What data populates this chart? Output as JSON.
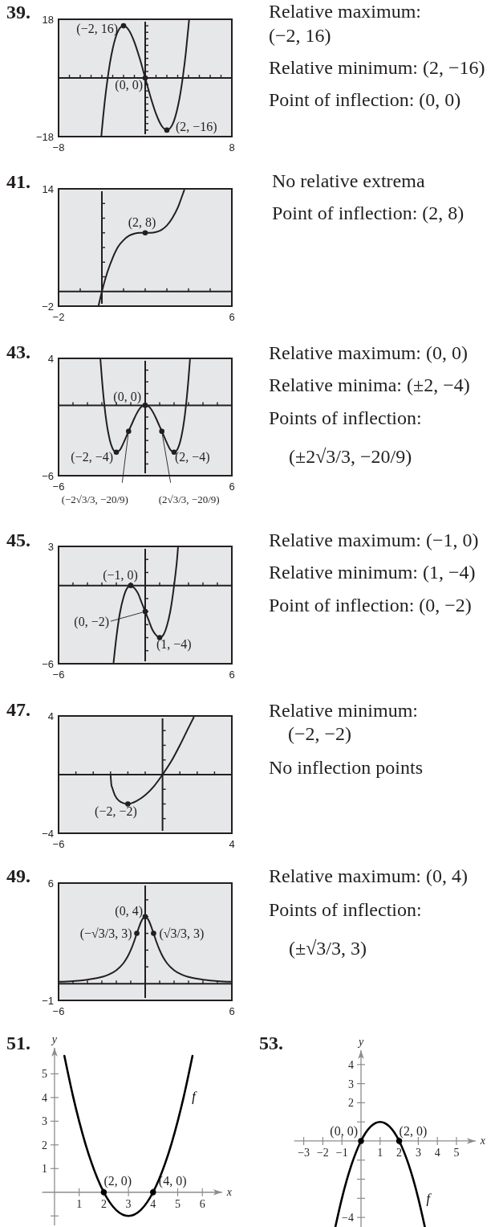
{
  "chart_data": [
    {
      "type": "line",
      "title": "39.",
      "x": [
        -4.05,
        -3.75,
        -3.5,
        -3.25,
        -3,
        -2.5,
        -2,
        -1.5,
        -1,
        -0.5,
        0,
        0.5,
        1,
        1.5,
        2,
        2.5,
        3,
        3.25,
        3.5,
        3.75,
        4,
        4.05
      ],
      "series": [
        {
          "color": "#231f20",
          "values": [
            -17.8,
            -7.7,
            -0.9,
            4.7,
            9,
            14.4,
            16,
            14.6,
            11,
            5.9,
            0,
            -5.9,
            -11,
            -14.6,
            -16,
            -14.4,
            -9,
            -4.7,
            0.9,
            7.7,
            16,
            17.8
          ]
        },
        {
          "type": "scatter",
          "x": [
            -2,
            0,
            2
          ],
          "color": "#231f20",
          "marker": "circle",
          "values": [
            16,
            0,
            -16
          ]
        }
      ],
      "xlim": [
        -8,
        8
      ],
      "ylim": [
        -18,
        18
      ],
      "xticks": [
        {
          "value": -8,
          "label": "−8"
        },
        {
          "value": -7,
          "label": null
        },
        {
          "value": -6,
          "label": null
        },
        {
          "value": -5,
          "label": null
        },
        {
          "value": -4,
          "label": null
        },
        {
          "value": -3,
          "label": null
        },
        {
          "value": -2,
          "label": null
        },
        {
          "value": -1,
          "label": null
        },
        {
          "value": 1,
          "label": null
        },
        {
          "value": 2,
          "label": null
        },
        {
          "value": 3,
          "label": null
        },
        {
          "value": 4,
          "label": null
        },
        {
          "value": 5,
          "label": null
        },
        {
          "value": 6,
          "label": null
        },
        {
          "value": 7,
          "label": null
        },
        8
      ],
      "yticks": [
        {
          "value": -18,
          "label": "−18"
        },
        {
          "value": -16,
          "label": null
        },
        {
          "value": -14,
          "label": null
        },
        {
          "value": -12,
          "label": null
        },
        {
          "value": -10,
          "label": null
        },
        {
          "value": -8,
          "label": null
        },
        {
          "value": -6,
          "label": null
        },
        {
          "value": -4,
          "label": null
        },
        {
          "value": -2,
          "label": null
        },
        {
          "value": 2,
          "label": null
        },
        {
          "value": 4,
          "label": null
        },
        {
          "value": 6,
          "label": null
        },
        {
          "value": 8,
          "label": null
        },
        {
          "value": 10,
          "label": null
        },
        {
          "value": 12,
          "label": null
        },
        {
          "value": 14,
          "label": null
        },
        {
          "value": 16,
          "label": null
        },
        18
      ],
      "annotations": [
        {
          "text": "(−2, 16)",
          "x": -2,
          "y": 16
        },
        {
          "text": "(0, 0)",
          "x": 0,
          "y": 0
        },
        {
          "text": "(2, −16)",
          "x": 2,
          "y": -16
        },
        "Relative maximum:",
        "(−2, 16)",
        "Relative minimum: (2, −16)",
        "Point of inflection: (0, 0)"
      ]
    },
    {
      "type": "line",
      "title": "41.",
      "x": [
        -0.15,
        0,
        0.25,
        0.5,
        0.75,
        1,
        1.25,
        1.5,
        1.75,
        2,
        2.25,
        2.5,
        2.75,
        3,
        3.25,
        3.5,
        3.75,
        3.8
      ],
      "series": [
        {
          "color": "#231f20",
          "values": [
            -1.9,
            0,
            2.6,
            4.6,
            6.1,
            7,
            7.6,
            7.9,
            8,
            8,
            8,
            8.1,
            8.4,
            9,
            10,
            11.4,
            13.4,
            13.8
          ]
        },
        {
          "type": "scatter",
          "x": [
            2
          ],
          "color": "#231f20",
          "marker": "circle",
          "values": [
            8
          ]
        }
      ],
      "xlim": [
        -2,
        6
      ],
      "ylim": [
        -2,
        14
      ],
      "xticks": [
        {
          "value": -2,
          "label": "−2"
        },
        {
          "value": -1,
          "label": null
        },
        {
          "value": 1,
          "label": null
        },
        {
          "value": 2,
          "label": null
        },
        {
          "value": 3,
          "label": null
        },
        {
          "value": 4,
          "label": null
        },
        {
          "value": 5,
          "label": null
        },
        6
      ],
      "yticks": [
        {
          "value": -2,
          "label": "−2"
        },
        {
          "value": 2,
          "label": null
        },
        {
          "value": 4,
          "label": null
        },
        {
          "value": 6,
          "label": null
        },
        {
          "value": 8,
          "label": null
        },
        {
          "value": 10,
          "label": null
        },
        {
          "value": 12,
          "label": null
        },
        14
      ],
      "annotations": [
        {
          "text": "(2, 8)",
          "x": 2,
          "y": 8
        },
        "No relative extrema",
        "Point of inflection: (2, 8)"
      ]
    },
    {
      "type": "line",
      "title": "43.",
      "x": [
        -3.1,
        -3,
        -2.75,
        -2.5,
        -2.25,
        -2,
        -1.75,
        -1.5,
        -1.15,
        -1,
        -0.75,
        -0.5,
        -0.25,
        0,
        0.25,
        0.5,
        0.75,
        1,
        1.15,
        1.5,
        1.75,
        2,
        2.25,
        2.5,
        2.75,
        3,
        3.1
      ],
      "series": [
        {
          "color": "#231f20",
          "values": [
            3.9,
            2.3,
            -0.8,
            -2.7,
            -3.7,
            -4,
            -3.8,
            -3.2,
            -2.2,
            -1.8,
            -1.1,
            -0.5,
            -0.1,
            0,
            -0.1,
            -0.5,
            -1.1,
            -1.8,
            -2.2,
            -3.2,
            -3.8,
            -4,
            -3.7,
            -2.7,
            -0.8,
            2.3,
            3.9
          ]
        },
        {
          "type": "scatter",
          "x": [
            0,
            -2,
            2,
            -1.15,
            1.15
          ],
          "color": "#231f20",
          "marker": "circle",
          "values": [
            0,
            -4,
            -4,
            -2.22,
            -2.22
          ]
        }
      ],
      "xlim": [
        -6,
        6
      ],
      "ylim": [
        -6,
        4
      ],
      "xticks": [
        {
          "value": -6,
          "label": "−6"
        },
        {
          "value": -5,
          "label": null
        },
        {
          "value": -4,
          "label": null
        },
        {
          "value": -3,
          "label": null
        },
        {
          "value": -2,
          "label": null
        },
        {
          "value": -1,
          "label": null
        },
        {
          "value": 1,
          "label": null
        },
        {
          "value": 2,
          "label": null
        },
        {
          "value": 3,
          "label": null
        },
        {
          "value": 4,
          "label": null
        },
        {
          "value": 5,
          "label": null
        },
        6
      ],
      "yticks": [
        {
          "value": -6,
          "label": "−6"
        },
        {
          "value": -5,
          "label": null
        },
        {
          "value": -4,
          "label": null
        },
        {
          "value": -3,
          "label": null
        },
        {
          "value": -2,
          "label": null
        },
        {
          "value": -1,
          "label": null
        },
        {
          "value": 1,
          "label": null
        },
        {
          "value": 2,
          "label": null
        },
        {
          "value": 3,
          "label": null
        },
        4
      ],
      "annotations": [
        {
          "text": "(0, 0)",
          "x": 0,
          "y": 0
        },
        {
          "text": "(−2, −4)",
          "x": -2,
          "y": -4
        },
        {
          "text": "(2, −4)",
          "x": 2,
          "y": -4
        },
        {
          "text": "(−2√3/3, −20/9)",
          "x": -1.15,
          "y": -2.22
        },
        {
          "text": "(2√3/3, −20/9)",
          "x": 1.15,
          "y": -2.22
        },
        "Relative maximum: (0, 0)",
        "Relative minima: (±2, −4)",
        "Points of inflection:",
        "(±2√3/3, −20/9)"
      ]
    },
    {
      "type": "line",
      "title": "45.",
      "x": [
        -2.19,
        -2,
        -1.75,
        -1.5,
        -1.25,
        -1,
        -0.75,
        -0.5,
        -0.25,
        0,
        0.25,
        0.5,
        0.75,
        1,
        1.25,
        1.5,
        1.75,
        2,
        2.25,
        2.27
      ],
      "series": [
        {
          "color": "#231f20",
          "values": [
            -5.9,
            -4,
            -2.1,
            -0.9,
            -0.2,
            0,
            -0.2,
            -0.6,
            -1.3,
            -2,
            -2.7,
            -3.4,
            -3.8,
            -4,
            -3.8,
            -3.1,
            -1.9,
            0,
            2.6,
            2.9
          ]
        },
        {
          "type": "scatter",
          "x": [
            -1,
            0,
            1
          ],
          "color": "#231f20",
          "marker": "circle",
          "values": [
            0,
            -2,
            -4
          ]
        }
      ],
      "xlim": [
        -6,
        6
      ],
      "ylim": [
        -6,
        3
      ],
      "xticks": [
        {
          "value": -6,
          "label": "−6"
        },
        {
          "value": -5,
          "label": null
        },
        {
          "value": -4,
          "label": null
        },
        {
          "value": -3,
          "label": null
        },
        {
          "value": -2,
          "label": null
        },
        {
          "value": -1,
          "label": null
        },
        {
          "value": 1,
          "label": null
        },
        {
          "value": 2,
          "label": null
        },
        {
          "value": 3,
          "label": null
        },
        {
          "value": 4,
          "label": null
        },
        {
          "value": 5,
          "label": null
        },
        6
      ],
      "yticks": [
        {
          "value": -6,
          "label": "−6"
        },
        {
          "value": -5,
          "label": null
        },
        {
          "value": -4,
          "label": null
        },
        {
          "value": -3,
          "label": null
        },
        {
          "value": -2,
          "label": null
        },
        {
          "value": -1,
          "label": null
        },
        {
          "value": 1,
          "label": null
        },
        {
          "value": 2,
          "label": null
        },
        3
      ],
      "annotations": [
        {
          "text": "(−1, 0)",
          "x": -1,
          "y": 0
        },
        {
          "text": "(0, −2)",
          "x": 0,
          "y": -2
        },
        {
          "text": "(1, −4)",
          "x": 1,
          "y": -4
        },
        "Relative maximum: (−1, 0)",
        "Relative minimum: (1, −4)",
        "Point of inflection: (0, −2)"
      ]
    },
    {
      "type": "line",
      "title": "47.",
      "x": [
        -3,
        -2.95,
        -2.9,
        -2.75,
        -2.5,
        -2.25,
        -2,
        -1.5,
        -1,
        -0.5,
        0,
        0.5,
        1,
        1.5,
        1.8
      ],
      "series": [
        {
          "color": "#231f20",
          "values": [
            0,
            -0.7,
            -0.9,
            -1.4,
            -1.8,
            -1.95,
            -2,
            -1.8,
            -1.4,
            -0.8,
            0,
            0.9,
            2,
            3.2,
            3.9
          ]
        },
        {
          "type": "scatter",
          "x": [
            -2
          ],
          "color": "#231f20",
          "marker": "circle",
          "values": [
            -2
          ]
        }
      ],
      "xlim": [
        -6,
        4
      ],
      "ylim": [
        -4,
        4
      ],
      "xticks": [
        {
          "value": -6,
          "label": "−6"
        },
        {
          "value": -5,
          "label": null
        },
        {
          "value": -4,
          "label": null
        },
        {
          "value": -3,
          "label": null
        },
        {
          "value": -2,
          "label": null
        },
        {
          "value": -1,
          "label": null
        },
        {
          "value": 1,
          "label": null
        },
        {
          "value": 2,
          "label": null
        },
        {
          "value": 3,
          "label": null
        },
        4
      ],
      "yticks": [
        {
          "value": -4,
          "label": "−4"
        },
        {
          "value": -3,
          "label": null
        },
        {
          "value": -2,
          "label": null
        },
        {
          "value": -1,
          "label": null
        },
        {
          "value": 1,
          "label": null
        },
        {
          "value": 2,
          "label": null
        },
        {
          "value": 3,
          "label": null
        },
        4
      ],
      "annotations": [
        {
          "text": "(−2, −2)",
          "x": -2,
          "y": -2
        },
        "Relative minimum:",
        "(−2, −2)",
        "No inflection points"
      ]
    },
    {
      "type": "line",
      "title": "49.",
      "x": [
        -6,
        -5,
        -4,
        -3,
        -2.5,
        -2,
        -1.5,
        -1.25,
        -1,
        -0.75,
        -0.58,
        -0.5,
        -0.25,
        0,
        0.25,
        0.5,
        0.58,
        0.75,
        1,
        1.25,
        1.5,
        2,
        2.5,
        3,
        4,
        5,
        6
      ],
      "series": [
        {
          "color": "#231f20",
          "values": [
            0.11,
            0.15,
            0.24,
            0.4,
            0.55,
            0.8,
            1.23,
            1.56,
            2,
            2.56,
            3,
            3.2,
            3.76,
            4,
            3.76,
            3.2,
            3,
            2.56,
            2,
            1.56,
            1.23,
            0.8,
            0.55,
            0.4,
            0.24,
            0.15,
            0.11
          ]
        },
        {
          "type": "scatter",
          "x": [
            0,
            -0.58,
            0.58
          ],
          "color": "#231f20",
          "marker": "circle",
          "values": [
            4,
            3,
            3
          ]
        }
      ],
      "xlim": [
        -6,
        6
      ],
      "ylim": [
        -1,
        6
      ],
      "xticks": [
        {
          "value": -6,
          "label": "−6"
        },
        {
          "value": -5,
          "label": null
        },
        {
          "value": -4,
          "label": null
        },
        {
          "value": -3,
          "label": null
        },
        {
          "value": -2,
          "label": null
        },
        {
          "value": -1,
          "label": null
        },
        {
          "value": 1,
          "label": null
        },
        {
          "value": 2,
          "label": null
        },
        {
          "value": 3,
          "label": null
        },
        {
          "value": 4,
          "label": null
        },
        {
          "value": 5,
          "label": null
        },
        6
      ],
      "yticks": [
        {
          "value": -1,
          "label": "−1"
        },
        {
          "value": 1,
          "label": null
        },
        {
          "value": 2,
          "label": null
        },
        {
          "value": 3,
          "label": null
        },
        {
          "value": 4,
          "label": null
        },
        {
          "value": 5,
          "label": null
        },
        6
      ],
      "annotations": [
        {
          "text": "(0, 4)",
          "x": 0,
          "y": 4
        },
        {
          "text": "(−√3/3, 3)",
          "x": -0.58,
          "y": 3
        },
        {
          "text": "(√3/3, 3)",
          "x": 0.58,
          "y": 3
        },
        "Relative maximum: (0, 4)",
        "Points of inflection:",
        "(±√3/3, 3)"
      ]
    },
    {
      "type": "line",
      "title": "51.",
      "xlabel": "x",
      "ylabel": "y",
      "x": [
        0.4,
        0.75,
        1,
        1.25,
        1.5,
        2,
        2.5,
        3,
        3.5,
        4,
        4.5,
        4.75,
        5,
        5.25,
        5.6
      ],
      "series": [
        {
          "name": "f",
          "color": "#000000",
          "values": [
            5.76,
            4.06,
            3,
            2.06,
            1.25,
            0,
            -0.75,
            -1,
            -0.75,
            0,
            1.25,
            2.06,
            3,
            4.06,
            5.76
          ]
        },
        {
          "type": "scatter",
          "x": [
            2,
            4
          ],
          "color": "#000000",
          "marker": "circle",
          "values": [
            0,
            0
          ]
        }
      ],
      "xlim": [
        -0.5,
        6.8
      ],
      "ylim": [
        -1.4,
        6.1
      ],
      "xticks": [
        1,
        2,
        3,
        4,
        5,
        6
      ],
      "yticks": [
        {
          "value": -1,
          "label": null
        },
        1,
        2,
        3,
        4,
        5
      ],
      "annotations": [
        {
          "text": "(2, 0)",
          "x": 2,
          "y": 0
        },
        {
          "text": "(4, 0)",
          "x": 4,
          "y": 0
        }
      ]
    },
    {
      "type": "line",
      "title": "53.",
      "xlabel": "x",
      "ylabel": "y",
      "x": [
        -1.34,
        -1,
        -0.5,
        0,
        0.25,
        0.5,
        1,
        1.5,
        1.75,
        2,
        2.5,
        3,
        3.34
      ],
      "series": [
        {
          "name": "f",
          "color": "#000000",
          "values": [
            -4.48,
            -3,
            -1.25,
            0,
            0.44,
            0.75,
            1,
            0.75,
            0.44,
            0,
            -1.25,
            -3,
            -4.48
          ]
        },
        {
          "type": "scatter",
          "x": [
            0,
            2
          ],
          "color": "#000000",
          "marker": "circle",
          "values": [
            0,
            0
          ]
        }
      ],
      "xlim": [
        -3.5,
        6
      ],
      "ylim": [
        -4.5,
        4.75
      ],
      "xticks": [
        {
          "value": -3,
          "label": "−3"
        },
        {
          "value": -2,
          "label": "−2"
        },
        {
          "value": -1,
          "label": "−1"
        },
        1,
        2,
        3,
        4,
        5
      ],
      "yticks": [
        {
          "value": -4,
          "label": "−4"
        },
        {
          "value": -3,
          "label": null
        },
        {
          "value": -2,
          "label": null
        },
        {
          "value": -1,
          "label": null
        },
        {
          "value": 1,
          "label": null
        },
        2,
        3,
        4
      ],
      "annotations": [
        {
          "text": "(0, 0)",
          "x": 0,
          "y": 0
        },
        {
          "text": "(2, 0)",
          "x": 2,
          "y": 0
        }
      ]
    }
  ]
}
